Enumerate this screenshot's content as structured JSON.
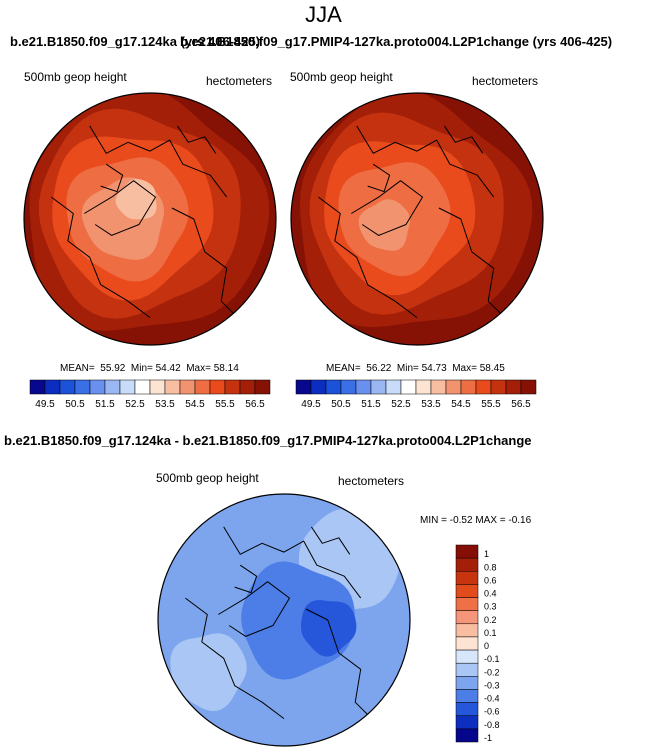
{
  "season": "JJA",
  "top_title_left": "b.e21.B1850.f09_g17.124ka (yrs 406-425)",
  "top_title_right": "b.e21.B1850.f09_g17.PMIP4-127ka.proto004.L2P1change (yrs 406-425)",
  "diff_title": "b.e21.B1850.f09_g17.124ka - b.e21.B1850.f09_g17.PMIP4-127ka.proto004.L2P1change",
  "chart_data": [
    {
      "type": "contour-map",
      "projection": "north polar stereographic",
      "variable": "500mb geop height",
      "units": "hectometers",
      "stats": {
        "mean_label": "MEAN=",
        "mean": "55.92",
        "min_label": "Min=",
        "min": "54.42",
        "max_label": "Max=",
        "max": "58.14"
      },
      "colorbar_ticks": [
        "49.5",
        "50.5",
        "51.5",
        "52.5",
        "53.5",
        "54.5",
        "55.5",
        "56.5"
      ]
    },
    {
      "type": "contour-map",
      "projection": "north polar stereographic",
      "variable": "500mb geop height",
      "units": "hectometers",
      "stats": {
        "mean_label": "MEAN=",
        "mean": "56.22",
        "min_label": "Min=",
        "min": "54.73",
        "max_label": "Max=",
        "max": "58.45"
      },
      "colorbar_ticks": [
        "49.5",
        "50.5",
        "51.5",
        "52.5",
        "53.5",
        "54.5",
        "55.5",
        "56.5"
      ]
    },
    {
      "type": "contour-map",
      "projection": "north polar stereographic",
      "variable": "500mb geop height",
      "units": "hectometers",
      "stats": {
        "min_label": "MIN =",
        "min": "-0.52",
        "max_label": "MAX =",
        "max": "-0.16"
      },
      "colorbar_ticks": [
        "1",
        "0.8",
        "0.6",
        "0.4",
        "0.3",
        "0.2",
        "0.1",
        "0",
        "-0.1",
        "-0.2",
        "-0.3",
        "-0.4",
        "-0.6",
        "-0.8",
        "-1"
      ]
    }
  ],
  "colors": {
    "abs_scale": [
      "#08088e",
      "#0c2ec0",
      "#1b52d9",
      "#3a6fe6",
      "#6990ee",
      "#9ab7f4",
      "#c7dcf8",
      "#ffffff",
      "#fde4d2",
      "#f8bea2",
      "#f29370",
      "#ee6d43",
      "#e94b1c",
      "#c43210",
      "#a41f08",
      "#861206"
    ],
    "diff_scale": [
      "#850f06",
      "#a41f08",
      "#c73410",
      "#e24b1c",
      "#ef7047",
      "#f5967a",
      "#f9bda2",
      "#fde4d2",
      "#d7e6fa",
      "#aac6f4",
      "#7da5ee",
      "#4d7de6",
      "#2657da",
      "#0d2ebf",
      "#06068c"
    ],
    "coast": "#000000",
    "outline": "#000000"
  }
}
